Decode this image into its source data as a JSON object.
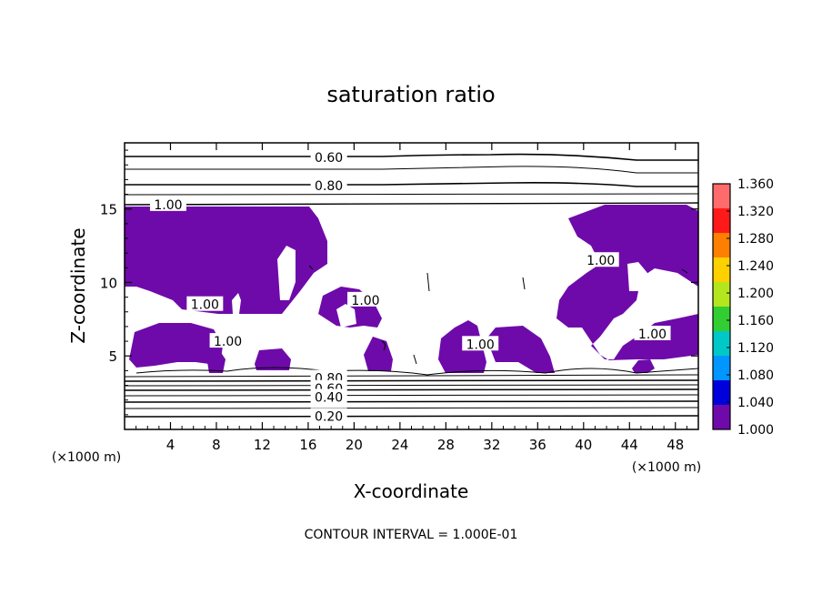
{
  "chart_data": {
    "type": "contour",
    "title": "saturation ratio",
    "xlabel": "X-coordinate",
    "ylabel": "Z-coordinate",
    "x_unit_left": "(×1000 m)",
    "x_unit_right": "(×1000 m)",
    "xlim": [
      0,
      50
    ],
    "ylim": [
      0,
      19.5
    ],
    "xticks": [
      4,
      8,
      12,
      16,
      20,
      24,
      28,
      32,
      36,
      40,
      44,
      48
    ],
    "yticks": [
      5,
      10,
      15
    ],
    "footer": "CONTOUR INTERVAL = 1.000E-01",
    "contour_interval": 0.1,
    "contour_labels": [
      {
        "text": "0.60",
        "x": 17.8,
        "y": 18.5
      },
      {
        "text": "0.80",
        "x": 17.8,
        "y": 16.6
      },
      {
        "text": "1.00",
        "x": 3.8,
        "y": 15.3
      },
      {
        "text": "1.00",
        "x": 7.0,
        "y": 8.5
      },
      {
        "text": "1.00",
        "x": 9.0,
        "y": 6.0
      },
      {
        "text": "1.00",
        "x": 21.0,
        "y": 8.8
      },
      {
        "text": "1.00",
        "x": 31.0,
        "y": 5.8
      },
      {
        "text": "1.00",
        "x": 41.5,
        "y": 11.5
      },
      {
        "text": "1.00",
        "x": 46.0,
        "y": 6.5
      },
      {
        "text": "0.80",
        "x": 17.8,
        "y": 3.5
      },
      {
        "text": "0.60",
        "x": 17.8,
        "y": 2.8
      },
      {
        "text": "0.40",
        "x": 17.8,
        "y": 2.2
      },
      {
        "text": "0.20",
        "x": 17.8,
        "y": 0.9
      }
    ],
    "colorbar": {
      "labels": [
        "1.360",
        "1.320",
        "1.280",
        "1.240",
        "1.200",
        "1.160",
        "1.120",
        "1.080",
        "1.040",
        "1.000"
      ],
      "colors": [
        "#ff6b6b",
        "#ff1a1a",
        "#ff7f00",
        "#ffd000",
        "#b4e61e",
        "#32cd32",
        "#00c8c8",
        "#0096ff",
        "#0000dc",
        "#6e0aaa"
      ]
    },
    "supersaturated_color": "#6e0aaa"
  }
}
